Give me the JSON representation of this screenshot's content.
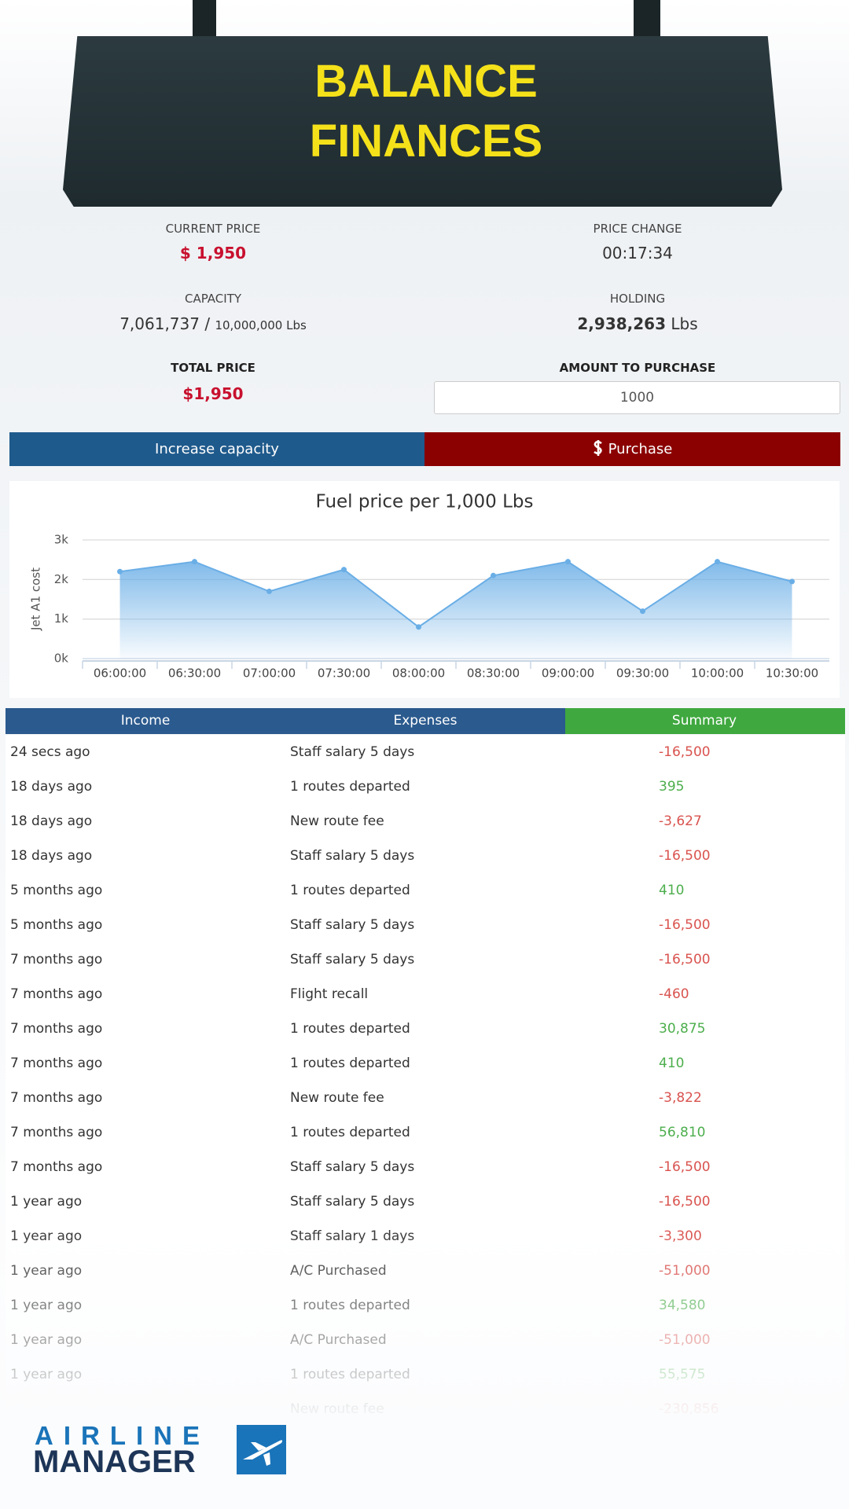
{
  "header": {
    "title_line1": "BALANCE",
    "title_line2": "FINANCES"
  },
  "fuel": {
    "current_price_label": "CURRENT PRICE",
    "current_price": "$ 1,950",
    "price_change_label": "PRICE CHANGE",
    "price_change": "00:17:34",
    "capacity_label": "CAPACITY",
    "capacity": {
      "value": "7,061,737",
      "separator": "/",
      "max": "10,000,000 Lbs"
    },
    "holding_label": "HOLDING",
    "holding": {
      "value": "2,938,263",
      "unit": "Lbs"
    },
    "total_price_label": "TOTAL PRICE",
    "total_price": "$1,950",
    "amount_label": "AMOUNT TO PURCHASE",
    "amount": "1000",
    "buttons": [
      "Increase capacity",
      "Purchase"
    ]
  },
  "chart_data": {
    "type": "area",
    "title": "Fuel price per 1,000 Lbs",
    "y_label": "Jet A1 cost",
    "categories": [
      "06:00:00",
      "06:30:00",
      "07:00:00",
      "07:30:00",
      "08:00:00",
      "08:30:00",
      "09:00:00",
      "09:30:00",
      "10:00:00",
      "10:30:00"
    ],
    "values": [
      2200,
      2450,
      1700,
      2250,
      800,
      2100,
      2450,
      1200,
      2450,
      1950
    ],
    "color": "#6aaee6",
    "ylim": [
      0,
      3000
    ],
    "yticks": [
      {
        "value": 0,
        "label": "0k"
      },
      {
        "value": 1000,
        "label": "1k"
      },
      {
        "value": 2000,
        "label": "2k"
      },
      {
        "value": 3000,
        "label": "3k"
      }
    ],
    "grid": true
  },
  "table": {
    "headers": [
      "Income",
      "Expenses",
      "Summary"
    ],
    "rows": [
      [
        "24 secs ago",
        "Staff salary 5 days",
        "-16,500"
      ],
      [
        "18 days ago",
        "1 routes departed",
        "395"
      ],
      [
        "18 days ago",
        "New route fee",
        "-3,627"
      ],
      [
        "18 days ago",
        "Staff salary 5 days",
        "-16,500"
      ],
      [
        "5 months ago",
        "1 routes departed",
        "410"
      ],
      [
        "5 months ago",
        "Staff salary 5 days",
        "-16,500"
      ],
      [
        "7 months ago",
        "Staff salary 5 days",
        "-16,500"
      ],
      [
        "7 months ago",
        "Flight recall",
        "-460"
      ],
      [
        "7 months ago",
        "1 routes departed",
        "30,875"
      ],
      [
        "7 months ago",
        "1 routes departed",
        "410"
      ],
      [
        "7 months ago",
        "New route fee",
        "-3,822"
      ],
      [
        "7 months ago",
        "1 routes departed",
        "56,810"
      ],
      [
        "7 months ago",
        "Staff salary 5 days",
        "-16,500"
      ],
      [
        "1 year ago",
        "Staff salary 5 days",
        "-16,500"
      ],
      [
        "1 year ago",
        "Staff salary 1 days",
        "-3,300"
      ],
      [
        "1 year ago",
        "A/C Purchased",
        "-51,000"
      ],
      [
        "1 year ago",
        "1 routes departed",
        "34,580"
      ],
      [
        "1 year ago",
        "A/C Purchased",
        "-51,000"
      ],
      [
        "1 year ago",
        "1 routes departed",
        "55,575"
      ],
      [
        "",
        "New route fee",
        "-230,856"
      ]
    ]
  },
  "logo": {
    "line1": "AIRLINE",
    "line2": "MANAGER"
  }
}
